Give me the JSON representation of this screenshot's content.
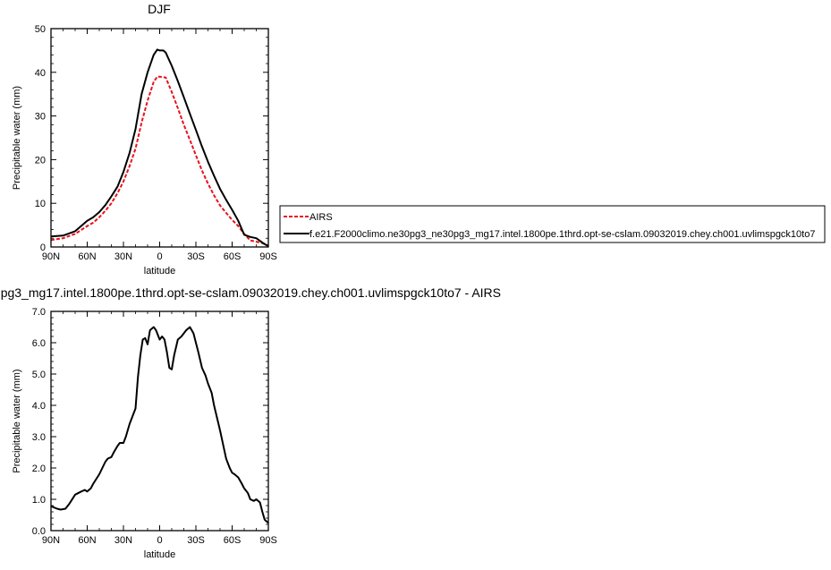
{
  "chart_data": [
    {
      "type": "line",
      "title": "DJF",
      "xlabel": "latitude",
      "ylabel": "Precipitable water (mm)",
      "xlim": [
        90,
        -90
      ],
      "ylim": [
        0,
        50
      ],
      "x_ticks": [
        90,
        60,
        30,
        0,
        -30,
        -60,
        -90
      ],
      "x_tick_labels": [
        "90N",
        "60N",
        "30N",
        "0",
        "30S",
        "60S",
        "90S"
      ],
      "y_ticks": [
        0,
        10,
        20,
        30,
        40,
        50
      ],
      "y_tick_labels": [
        "0",
        "10",
        "20",
        "30",
        "40",
        "50"
      ],
      "legend_position": "right",
      "series": [
        {
          "name": "AIRS",
          "color": "#e8121c",
          "style": "dashed",
          "x": [
            90,
            80,
            70,
            60,
            55,
            50,
            45,
            40,
            35,
            30,
            25,
            20,
            15,
            10,
            5,
            2,
            0,
            -3,
            -5,
            -10,
            -15,
            -20,
            -25,
            -30,
            -35,
            -40,
            -45,
            -50,
            -55,
            -60,
            -65,
            -70,
            -75,
            -80,
            -85,
            -88,
            -90
          ],
          "values": [
            1.6,
            2.0,
            3.0,
            4.8,
            5.6,
            6.8,
            8.3,
            10.0,
            12.3,
            15.0,
            18.5,
            22.5,
            28.5,
            33.5,
            37.8,
            39.0,
            39.0,
            38.9,
            38.8,
            35.5,
            31.8,
            28.0,
            24.5,
            21.0,
            17.5,
            14.5,
            11.8,
            9.5,
            7.8,
            6.2,
            4.8,
            3.0,
            1.5,
            1.2,
            0.9,
            0.5,
            0.3
          ]
        },
        {
          "name": "f.e21.F2000climo.ne30pg3_ne30pg3_mg17.intel.1800pe.1thrd.opt-se-cslam.09032019.chey.ch001.uvlimspgck10to7",
          "color": "#000000",
          "style": "solid",
          "x": [
            90,
            80,
            70,
            60,
            55,
            50,
            45,
            40,
            35,
            30,
            25,
            20,
            15,
            10,
            5,
            2,
            0,
            -3,
            -5,
            -10,
            -15,
            -20,
            -25,
            -30,
            -35,
            -40,
            -45,
            -50,
            -55,
            -60,
            -65,
            -70,
            -75,
            -80,
            -85,
            -88,
            -90
          ],
          "values": [
            2.4,
            2.6,
            3.6,
            6.0,
            6.8,
            8.0,
            9.6,
            11.6,
            13.8,
            17.2,
            21.5,
            27.0,
            35.0,
            40.0,
            44.0,
            45.2,
            45.0,
            45.0,
            44.5,
            41.5,
            38.0,
            34.3,
            30.5,
            26.8,
            23.0,
            19.5,
            16.3,
            13.3,
            10.8,
            8.5,
            6.0,
            2.8,
            2.3,
            2.0,
            1.0,
            0.5,
            0.2
          ]
        }
      ]
    },
    {
      "type": "line",
      "title": "pg3_mg17.intel.1800pe.1thrd.opt-se-cslam.09032019.chey.ch001.uvlimspgck10to7 - AIRS",
      "xlabel": "latitude",
      "ylabel": "Precipitable water (mm)",
      "xlim": [
        90,
        -90
      ],
      "ylim": [
        0,
        7
      ],
      "x_ticks": [
        90,
        60,
        30,
        0,
        -30,
        -60,
        -90
      ],
      "x_tick_labels": [
        "90N",
        "60N",
        "30N",
        "0",
        "30S",
        "60S",
        "90S"
      ],
      "y_ticks": [
        0,
        1,
        2,
        3,
        4,
        5,
        6,
        7
      ],
      "y_tick_labels": [
        "0.0",
        "1.0",
        "2.0",
        "3.0",
        "4.0",
        "5.0",
        "6.0",
        "7.0"
      ],
      "series": [
        {
          "color": "#000000",
          "style": "solid",
          "x": [
            90,
            88,
            85,
            82,
            78,
            75,
            70,
            65,
            62,
            60,
            57,
            55,
            50,
            45,
            43,
            40,
            38,
            35,
            33,
            30,
            28,
            25,
            22,
            20,
            18,
            16,
            14,
            12,
            10,
            8,
            5,
            3,
            0,
            -2,
            -4,
            -6,
            -8,
            -10,
            -12,
            -15,
            -18,
            -20,
            -22,
            -25,
            -28,
            -30,
            -32,
            -35,
            -38,
            -40,
            -43,
            -45,
            -50,
            -55,
            -58,
            -60,
            -62,
            -65,
            -68,
            -70,
            -73,
            -75,
            -78,
            -80,
            -83,
            -85,
            -87,
            -89,
            -90
          ],
          "values": [
            0.78,
            0.75,
            0.7,
            0.67,
            0.7,
            0.85,
            1.15,
            1.25,
            1.3,
            1.25,
            1.35,
            1.5,
            1.8,
            2.2,
            2.3,
            2.35,
            2.5,
            2.7,
            2.8,
            2.8,
            3.0,
            3.4,
            3.7,
            3.9,
            4.9,
            5.6,
            6.1,
            6.15,
            5.95,
            6.4,
            6.5,
            6.4,
            6.1,
            6.2,
            6.1,
            5.7,
            5.2,
            5.15,
            5.6,
            6.1,
            6.2,
            6.3,
            6.4,
            6.5,
            6.3,
            6.0,
            5.7,
            5.2,
            4.95,
            4.7,
            4.4,
            4.0,
            3.2,
            2.3,
            2.0,
            1.85,
            1.8,
            1.7,
            1.5,
            1.35,
            1.2,
            1.0,
            0.95,
            1.0,
            0.9,
            0.6,
            0.35,
            0.28,
            0.25
          ]
        }
      ]
    }
  ]
}
